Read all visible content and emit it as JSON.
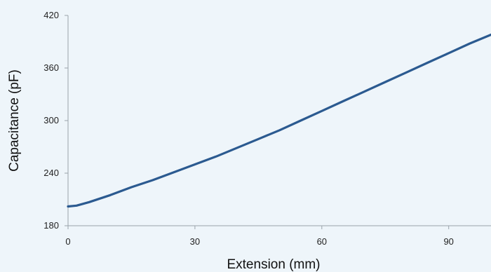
{
  "chart_data": {
    "type": "line",
    "xlabel": "Extension (mm)",
    "ylabel": "Capacitance (pF)",
    "xlim": [
      0,
      100
    ],
    "ylim": [
      180,
      420
    ],
    "xticks": [
      0,
      30,
      60,
      90
    ],
    "yticks": [
      180,
      240,
      300,
      360,
      420
    ],
    "grid": false,
    "line_color": "#2b5a90",
    "background": "#eef5fa",
    "series": [
      {
        "x": [
          0,
          2,
          5,
          10,
          15,
          20,
          25,
          30,
          35,
          40,
          45,
          50,
          55,
          60,
          65,
          70,
          75,
          80,
          85,
          90,
          95,
          100
        ],
        "y": [
          202,
          203,
          207,
          215,
          224,
          232,
          241,
          250,
          259,
          269,
          279,
          289,
          300,
          311,
          322,
          333,
          344,
          355,
          366,
          377,
          388,
          398
        ]
      }
    ]
  }
}
